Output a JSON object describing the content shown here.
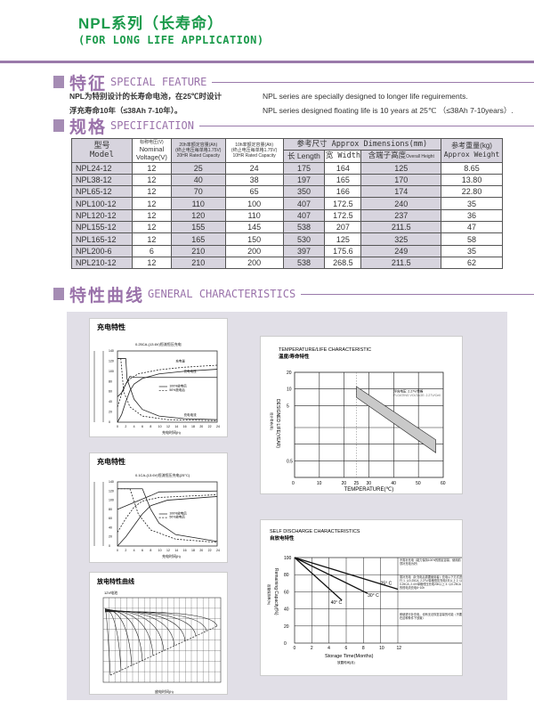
{
  "header": {
    "title": "NPL系列（长寿命）",
    "subtitle": "(FOR LONG LIFE APPLICATION)"
  },
  "feature": {
    "heading_cn": "特征",
    "heading_en": "SPECIAL FEATURE",
    "cn_lines": [
      "NPL为特别设计的长寿命电池，在25℃时设计",
      "浮充寿命10年（≤38Ah 7-10年）。"
    ],
    "en_lines": [
      "NPL series are specially designed to longer life reguirements.",
      "NPL series designed floating life is 10 years at 25℃ （≤38Ah 7-10years）."
    ]
  },
  "spec": {
    "heading_cn": "规格",
    "heading_en": "SPECIFICATION",
    "headers": {
      "model_cn": "型号",
      "model_en": "Model",
      "voltage_cn": "标称电压(V)",
      "voltage_en": "Nominal Voltage(V)",
      "c20_cn": "20h率额定容量(Ah)",
      "c20_note": "(终止电压每单格1.75V)",
      "c20_en": "20HR Rated Capacity",
      "c10_cn": "10h率额定容量(Ah)",
      "c10_note": "(终止电压每单格1.75V)",
      "c10_en": "10HR Rated Capacity",
      "dims": "参考尺寸 Approx Dimensions(mm)",
      "length": "长 Length",
      "width": "宽 Width",
      "height_cn": "含端子高度",
      "height_en": "Overall Height",
      "weight_cn": "参考重量(kg)",
      "weight_en": "Approx Weight"
    },
    "rows": [
      [
        "NPL24-12",
        "12",
        "25",
        "24",
        "175",
        "164",
        "125",
        "8.65"
      ],
      [
        "NPL38-12",
        "12",
        "40",
        "38",
        "197",
        "165",
        "170",
        "13.80"
      ],
      [
        "NPL65-12",
        "12",
        "70",
        "65",
        "350",
        "166",
        "174",
        "22.80"
      ],
      [
        "NPL100-12",
        "12",
        "110",
        "100",
        "407",
        "172.5",
        "240",
        "35"
      ],
      [
        "NPL120-12",
        "12",
        "120",
        "110",
        "407",
        "172.5",
        "237",
        "36"
      ],
      [
        "NPL155-12",
        "12",
        "155",
        "145",
        "538",
        "207",
        "211.5",
        "47"
      ],
      [
        "NPL165-12",
        "12",
        "165",
        "150",
        "530",
        "125",
        "325",
        "58"
      ],
      [
        "NPL200-6",
        "6",
        "210",
        "200",
        "397",
        "175.6",
        "249",
        "35"
      ],
      [
        "NPL210-12",
        "12",
        "210",
        "200",
        "538",
        "268.5",
        "211.5",
        "62"
      ]
    ]
  },
  "characteristics": {
    "heading_cn": "特性曲线",
    "heading_en": "GENERAL CHARACTERISTICS"
  },
  "chart_data": [
    {
      "type": "line",
      "title": "充电特性",
      "subtitle": "0.25CA-(13.6V)恒流恒压充电",
      "xlabel": "充电时间(h)",
      "xlim": [
        0,
        24
      ],
      "labels": {
        "charge": "充电量",
        "voltage": "充电电压",
        "current": "充电电流"
      },
      "legend": [
        "100%放电后",
        "50%放电后"
      ],
      "series": [
        {
          "name": "充电量",
          "style": "solid",
          "points": [
            [
              0,
              0
            ],
            [
              1,
              15
            ],
            [
              2,
              40
            ],
            [
              3,
              62
            ],
            [
              4,
              75
            ],
            [
              6,
              86
            ],
            [
              10,
              95
            ],
            [
              16,
              100
            ],
            [
              24,
              104
            ]
          ]
        },
        {
          "name": "充电量",
          "style": "dashed",
          "points": [
            [
              0,
              30
            ],
            [
              1,
              55
            ],
            [
              2,
              75
            ],
            [
              3,
              85
            ],
            [
              5,
              95
            ],
            [
              10,
              103
            ],
            [
              16,
              108
            ],
            [
              24,
              112
            ]
          ]
        },
        {
          "name": "充电电压",
          "style": "solid",
          "points": [
            [
              0,
              50
            ],
            [
              1,
              58
            ],
            [
              2,
              75
            ],
            [
              3,
              90
            ],
            [
              4,
              88
            ],
            [
              24,
              88
            ]
          ]
        },
        {
          "name": "充电电流",
          "style": "solid",
          "points": [
            [
              0,
              125
            ],
            [
              2,
              125
            ],
            [
              2.3,
              85
            ],
            [
              4,
              45
            ],
            [
              6,
              25
            ],
            [
              10,
              12
            ],
            [
              16,
              7
            ],
            [
              24,
              5
            ]
          ]
        },
        {
          "name": "充电电流",
          "style": "dashed",
          "points": [
            [
              0,
              125
            ],
            [
              0.8,
              125
            ],
            [
              1.5,
              60
            ],
            [
              3,
              30
            ],
            [
              6,
              12
            ],
            [
              12,
              5
            ],
            [
              24,
              3
            ]
          ]
        }
      ]
    },
    {
      "type": "line",
      "title": "充电特性",
      "subtitle": "0.1CA-(13.6V)恒流恒压充电(25°C)",
      "xlabel": "充电时间(h)",
      "xlim": [
        0,
        24
      ],
      "legend": [
        "100%放电后",
        "50%放电后"
      ],
      "series": [
        {
          "name": "",
          "style": "solid",
          "points": [
            [
              0,
              0
            ],
            [
              2,
              20
            ],
            [
              4,
              45
            ],
            [
              6,
              70
            ],
            [
              8,
              88
            ],
            [
              12,
              100
            ],
            [
              24,
              108
            ]
          ]
        },
        {
          "name": "",
          "style": "dashed",
          "points": [
            [
              0,
              30
            ],
            [
              2,
              60
            ],
            [
              4,
              85
            ],
            [
              6,
              98
            ],
            [
              10,
              106
            ],
            [
              24,
              112
            ]
          ]
        },
        {
          "name": "",
          "style": "solid",
          "points": [
            [
              0,
              80
            ],
            [
              4,
              95
            ],
            [
              8,
              110
            ],
            [
              10,
              118
            ],
            [
              24,
              120
            ]
          ]
        },
        {
          "name": "",
          "style": "solid",
          "points": [
            [
              0,
              125
            ],
            [
              6,
              125
            ],
            [
              8,
              80
            ],
            [
              10,
              50
            ],
            [
              14,
              25
            ],
            [
              24,
              10
            ]
          ]
        },
        {
          "name": "",
          "style": "dashed",
          "points": [
            [
              0,
              125
            ],
            [
              3,
              125
            ],
            [
              5,
              70
            ],
            [
              8,
              35
            ],
            [
              14,
              15
            ],
            [
              24,
              8
            ]
          ]
        }
      ]
    },
    {
      "type": "line",
      "title": "放电特性曲线",
      "subtitle": "12V电池",
      "xlabel": "放电时间(h)",
      "end_times": [
        0.1,
        0.2,
        0.4,
        0.7,
        1,
        2,
        3,
        5,
        8,
        12,
        20
      ]
    },
    {
      "type": "area",
      "title": "TEMPERATURE/LIFE CHARACTERISTIC",
      "subtitle": "温度/寿命特性",
      "xlabel": "TEMPERATURE(℃)",
      "xlabel_cn": "温度",
      "ylabel": "DESIGNED LIFE(YEAR)",
      "ylabel_cn": "设计寿命(年)",
      "xlim": [
        0,
        60
      ],
      "ylim": [
        0.25,
        20
      ],
      "yscale": "log",
      "xticks": [
        "0",
        "10",
        "20",
        "25",
        "30",
        "40",
        "50",
        "60"
      ],
      "yticks": [
        "0.5",
        "5",
        "10",
        "20"
      ],
      "annotation_cn": "浮充电压: 2.27V/单格",
      "annotation_en": "FLOATING VOLTAGE: 2.27V/Cell",
      "band_upper": [
        [
          25,
          11
        ],
        [
          57,
          1.2
        ]
      ],
      "band_lower": [
        [
          25,
          7
        ],
        [
          57,
          0.7
        ]
      ]
    },
    {
      "type": "line",
      "title": "SELF DISCHARGE CHARACTERISTICS",
      "subtitle": "自放电特性",
      "xlabel": "Storage Time(Months)",
      "xlabel_cn": "放置时间(月)",
      "ylabel": "Remaining Capacity(%)",
      "ylabel_cn": "容量保持率(%)",
      "xlim": [
        0,
        12
      ],
      "ylim": [
        0,
        100
      ],
      "xticks": [
        "0",
        "2",
        "4",
        "6",
        "8",
        "10",
        "12"
      ],
      "yticks": [
        "0",
        "20",
        "40",
        "60",
        "80",
        "100"
      ],
      "series": [
        {
          "name": "25° C",
          "points": [
            [
              0,
              100
            ],
            [
              12,
              63
            ]
          ]
        },
        {
          "name": "30° C",
          "points": [
            [
              0,
              100
            ],
            [
              8.5,
              58
            ]
          ]
        },
        {
          "name": "40° C",
          "points": [
            [
              0,
              100
            ],
            [
              5.5,
              50
            ]
          ]
        }
      ],
      "notes": [
        "不需补充电（能力保持100%的额定容量，使用前须补充电为好）",
        "需补充电（补充电后需要使用者）充电以下方式进行 1. 以0.25CA, 2.27V/单格恒压充电3天以上 2. 以0.25CA, 2.4V/单格恒压充电20h以上 3. 以0.25CA的恒电流充电8~10h",
        "即使进行补充电，也有无法恢复容量的可能（不要在这种条件下放置）"
      ]
    }
  ],
  "colors": {
    "title_green": "#1a9a4a",
    "accent_purple": "#9a72aa",
    "table_shade": "#d7d4de",
    "panel": "#e1dfe7"
  }
}
